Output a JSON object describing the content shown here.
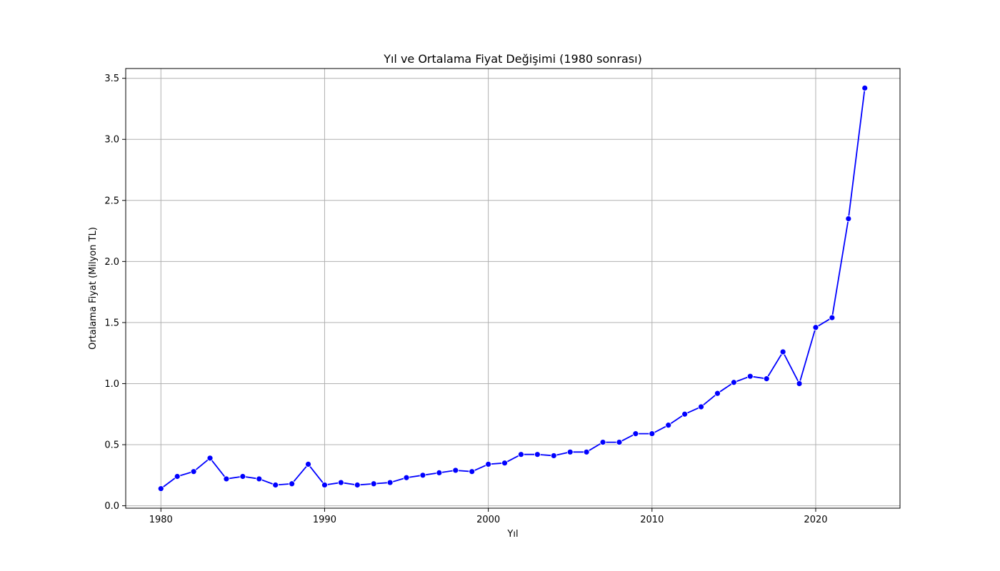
{
  "chart_data": {
    "type": "line",
    "title": "Yıl ve Ortalama Fiyat Değişimi (1980 sonrası)",
    "xlabel": "Yıl",
    "ylabel": "Ortalama Fiyat (Milyon TL)",
    "xlim": [
      1977.85,
      1025
    ],
    "ylim": [
      -0.02,
      3.58
    ],
    "x_ticks": [
      1980,
      1990,
      2000,
      2010,
      2020
    ],
    "y_ticks": [
      0.0,
      0.5,
      1.0,
      1.5,
      2.0,
      2.5,
      3.0,
      3.5
    ],
    "x_tick_labels": [
      "1980",
      "1990",
      "2000",
      "2010",
      "2020"
    ],
    "y_tick_labels": [
      "0.0",
      "0.5",
      "1.0",
      "1.5",
      "2.0",
      "2.5",
      "3.0",
      "3.5"
    ],
    "grid": true,
    "line_color": "#0000ff",
    "marker_color": "#0000ff",
    "series": [
      {
        "x": [
          1980,
          1981,
          1982,
          1983,
          1984,
          1985,
          1986,
          1987,
          1988,
          1989,
          1990,
          1991,
          1992,
          1993,
          1994,
          1995,
          1996,
          1997,
          1998,
          1999,
          2000,
          2001,
          2002,
          2003,
          2004,
          2005,
          2006,
          2007,
          2008,
          2009,
          2010,
          2011,
          2012,
          2013,
          2014,
          2015,
          2016,
          2017,
          2018,
          2019,
          2020,
          2021,
          2022,
          2023
        ],
        "y": [
          0.14,
          0.24,
          0.28,
          0.39,
          0.22,
          0.24,
          0.22,
          0.17,
          0.18,
          0.34,
          0.17,
          0.19,
          0.17,
          0.18,
          0.19,
          0.23,
          0.25,
          0.27,
          0.29,
          0.28,
          0.34,
          0.35,
          0.42,
          0.42,
          0.41,
          0.44,
          0.44,
          0.52,
          0.52,
          0.59,
          0.59,
          0.66,
          0.75,
          0.81,
          0.92,
          1.01,
          1.06,
          1.04,
          1.26,
          1.0,
          1.46,
          1.54,
          2.35,
          3.42
        ]
      }
    ]
  }
}
